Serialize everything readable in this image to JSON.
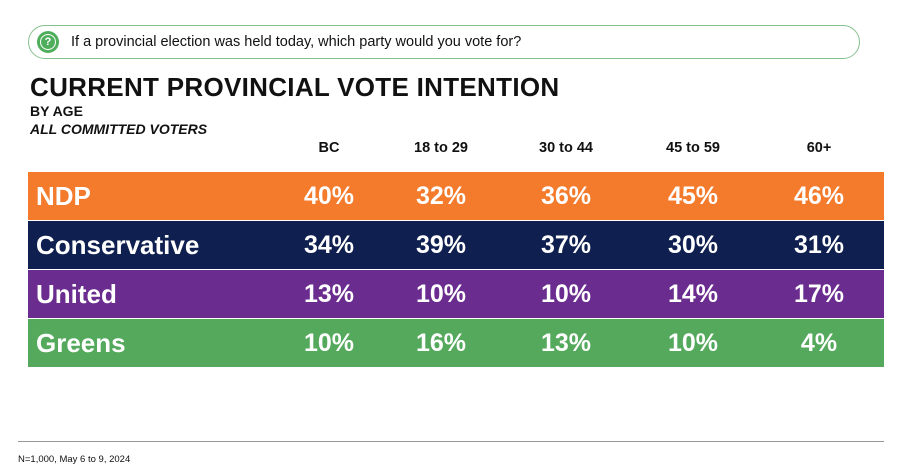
{
  "question": "If a provincial election was held today, which party would you vote for?",
  "header": {
    "title": "CURRENT PROVINCIAL VOTE INTENTION",
    "subtitle": "BY AGE",
    "subtitle2": "ALL COMMITTED VOTERS"
  },
  "footnote": "N=1,000, May 6 to 9, 2024",
  "colors": {
    "NDP": "#f47a2c",
    "Conservative": "#0f1f4f",
    "United": "#6a2c8e",
    "Greens": "#55a95d",
    "accent": "#4fae5c"
  },
  "chart_data": {
    "type": "table",
    "title": "CURRENT PROVINCIAL VOTE INTENTION",
    "subtitle": "BY AGE",
    "columns": [
      "BC",
      "18 to 29",
      "30 to 44",
      "45 to 59",
      "60+"
    ],
    "rows": [
      {
        "party": "NDP",
        "values": [
          "40%",
          "32%",
          "36%",
          "45%",
          "46%"
        ]
      },
      {
        "party": "Conservative",
        "values": [
          "34%",
          "39%",
          "37%",
          "30%",
          "31%"
        ]
      },
      {
        "party": "United",
        "values": [
          "13%",
          "10%",
          "10%",
          "14%",
          "17%"
        ]
      },
      {
        "party": "Greens",
        "values": [
          "10%",
          "16%",
          "13%",
          "10%",
          "4%"
        ]
      }
    ]
  }
}
